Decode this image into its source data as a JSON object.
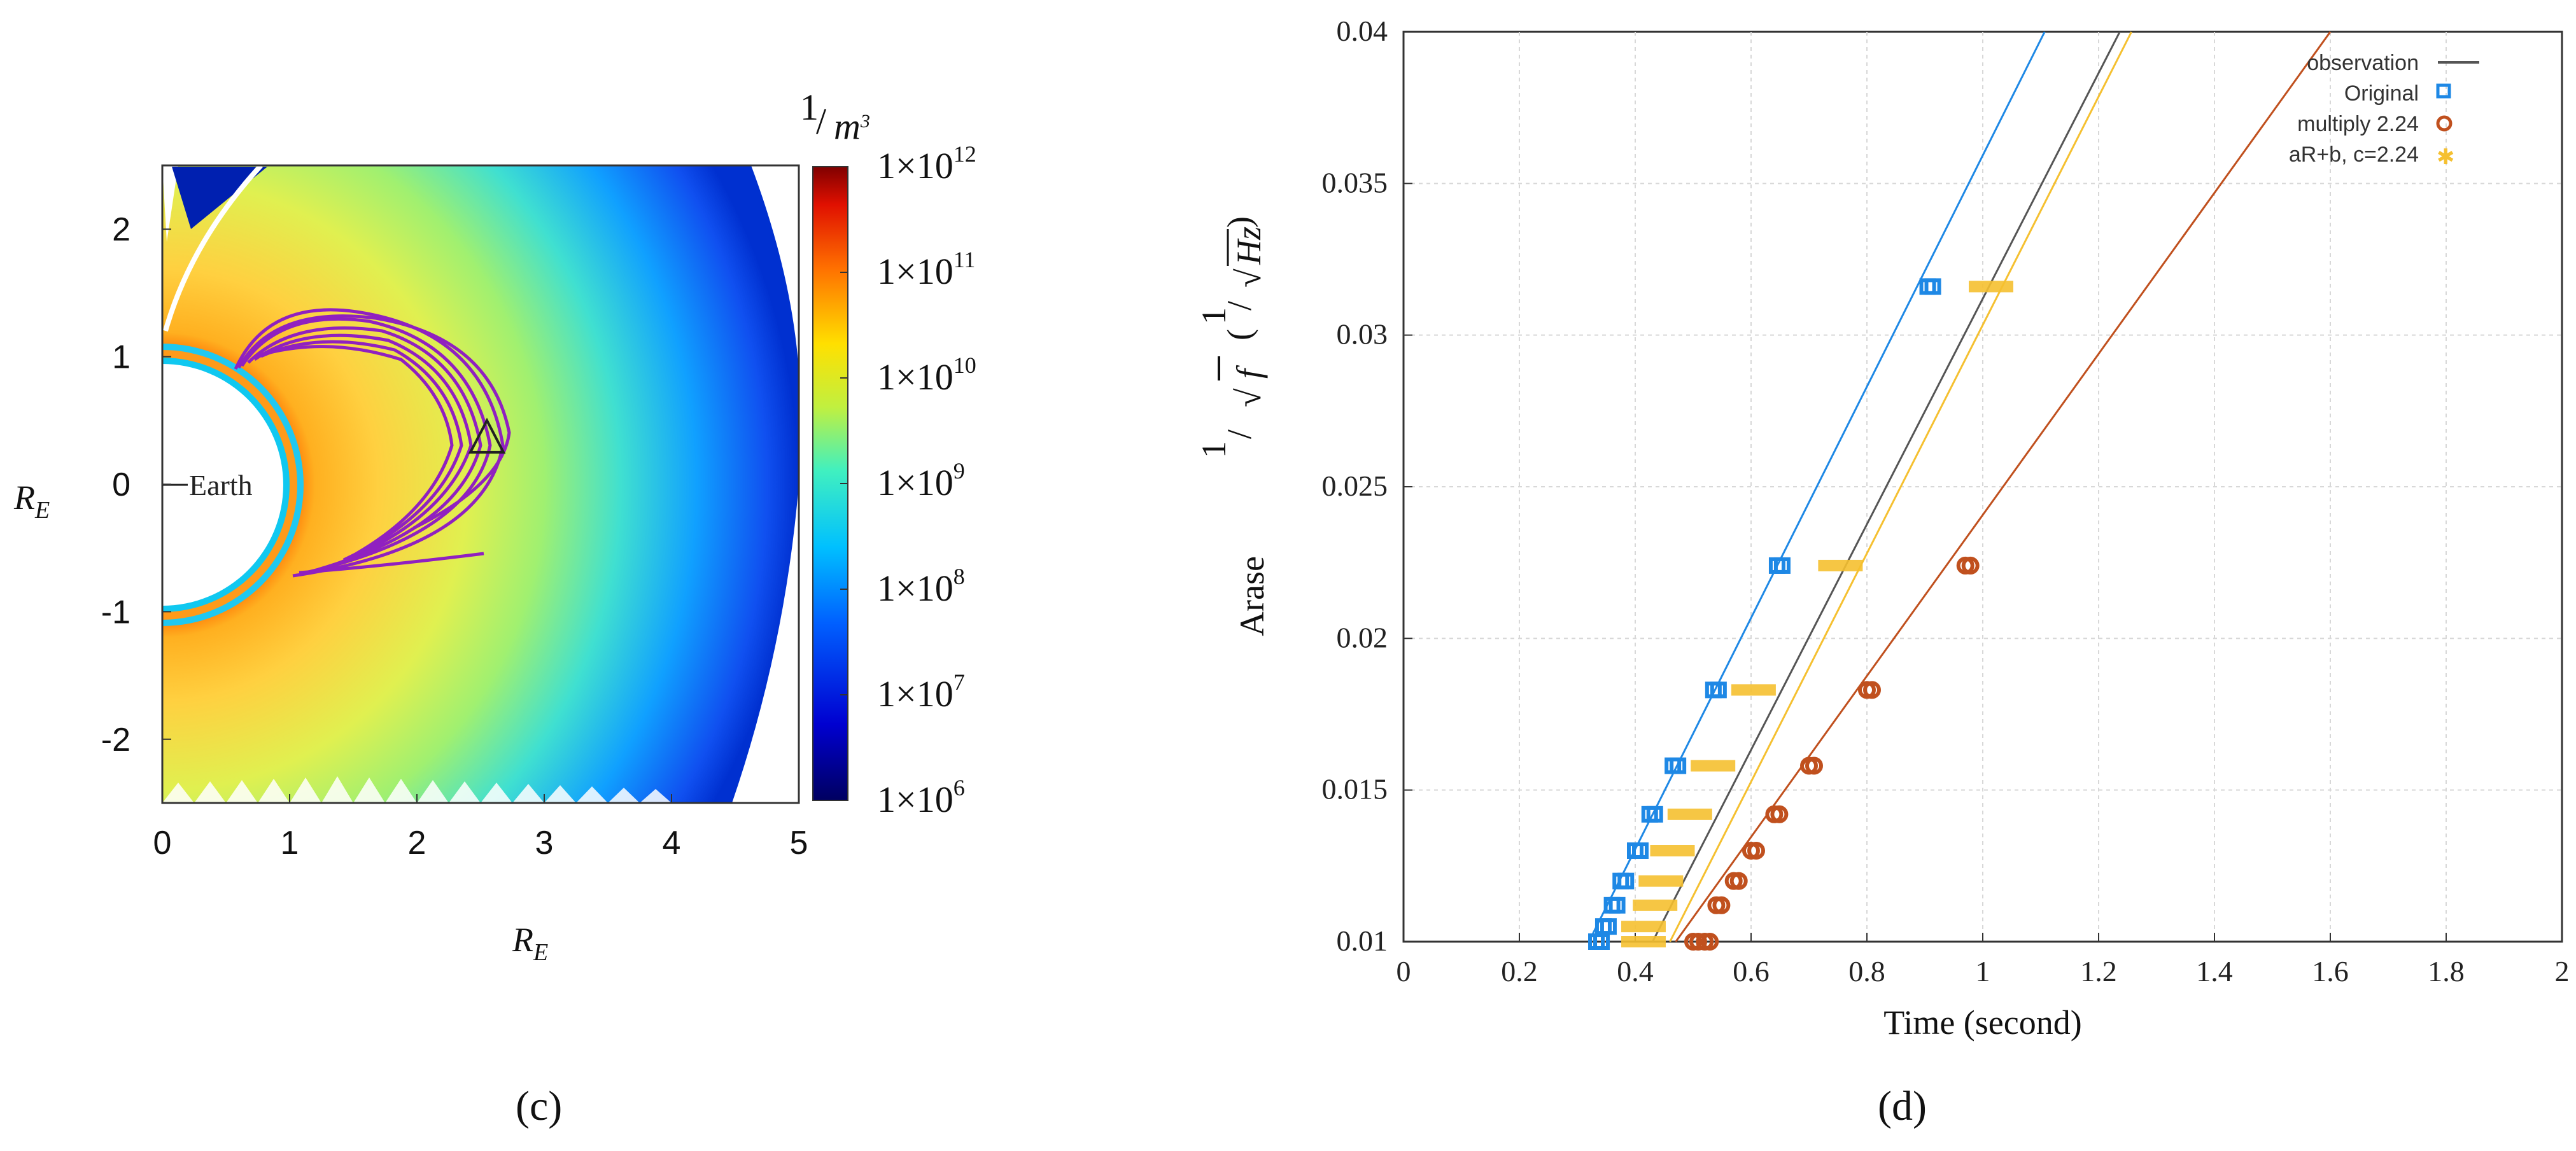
{
  "chart_data": [
    {
      "type": "heatmap",
      "panel_label": "(c)",
      "title": "",
      "xlabel": "R",
      "xlabel_sub": "E",
      "ylabel": "R",
      "ylabel_sub": "E",
      "xlim": [
        0,
        5
      ],
      "ylim": [
        -2.5,
        2.5
      ],
      "x_ticks": [
        "0",
        "1",
        "2",
        "3",
        "4",
        "5"
      ],
      "y_ticks": [
        "2",
        "1",
        "0",
        "-1",
        "-2"
      ],
      "earth_label": "Earth",
      "colorbar": {
        "unit_num": "1",
        "unit_den": "m",
        "unit_den_exp": "3",
        "scale": "log",
        "range": [
          1000000.0,
          1000000000000.0
        ],
        "ticks": [
          {
            "mantissa": "1×10",
            "exp": "12"
          },
          {
            "mantissa": "1×10",
            "exp": "11"
          },
          {
            "mantissa": "1×10",
            "exp": "10"
          },
          {
            "mantissa": "1×10",
            "exp": "9"
          },
          {
            "mantissa": "1×10",
            "exp": "8"
          },
          {
            "mantissa": "1×10",
            "exp": "7"
          },
          {
            "mantissa": "1×10",
            "exp": "6"
          }
        ]
      },
      "annotations": [
        "ray paths (purple)",
        "triangle marker"
      ],
      "marker_position_RE": [
        2.55,
        0.35
      ]
    },
    {
      "type": "line",
      "panel_label": "(d)",
      "title": "",
      "xlabel": "Time (second)",
      "ylabel_prefix": "Arase",
      "ylabel_num": "1",
      "ylabel_den": "f",
      "ylabel_unit_num": "1",
      "ylabel_unit_den": "Hz",
      "xlim": [
        0,
        2
      ],
      "ylim": [
        0.01,
        0.04
      ],
      "x_ticks": [
        "0",
        "0.2",
        "0.4",
        "0.6",
        "0.8",
        "1",
        "1.2",
        "1.4",
        "1.6",
        "1.8",
        "2"
      ],
      "y_ticks": [
        "0.04",
        "0.035",
        "0.03",
        "0.025",
        "0.02",
        "0.015",
        "0.01"
      ],
      "grid": true,
      "legend_position": "top-right",
      "series": [
        {
          "name": "observation",
          "kind": "line",
          "color": "#555555",
          "points": [
            [
              0.43,
              0.01
            ],
            [
              1.25,
              0.0405
            ]
          ]
        },
        {
          "name": "Original",
          "kind": "marker",
          "marker": "square",
          "color": "#1e88e5",
          "line": [
            [
              0.32,
              0.01
            ],
            [
              1.12,
              0.0405
            ]
          ],
          "points": [
            [
              0.333,
              0.01
            ],
            [
              0.345,
              0.0105
            ],
            [
              0.36,
              0.0112
            ],
            [
              0.375,
              0.012
            ],
            [
              0.4,
              0.013
            ],
            [
              0.425,
              0.0142
            ],
            [
              0.465,
              0.0158
            ],
            [
              0.535,
              0.0183
            ],
            [
              0.645,
              0.0224
            ],
            [
              0.905,
              0.0316
            ]
          ]
        },
        {
          "name": "multiply 2.24",
          "kind": "marker",
          "marker": "circle",
          "color": "#c0501e",
          "line": [
            [
              0.47,
              0.01
            ],
            [
              1.6,
              0.04
            ]
          ],
          "points": [
            [
              0.5,
              0.01
            ],
            [
              0.52,
              0.01
            ],
            [
              0.54,
              0.0112
            ],
            [
              0.57,
              0.012
            ],
            [
              0.6,
              0.013
            ],
            [
              0.64,
              0.0142
            ],
            [
              0.7,
              0.0158
            ],
            [
              0.8,
              0.0183
            ],
            [
              0.97,
              0.0224
            ]
          ]
        },
        {
          "name": "aR+b, c=2.24",
          "kind": "marker",
          "marker": "star",
          "color": "#f5c030",
          "line": [
            [
              0.46,
              0.01
            ],
            [
              1.27,
              0.0405
            ]
          ],
          "points": [
            [
              0.4,
              0.01
            ],
            [
              0.4,
              0.0105
            ],
            [
              0.42,
              0.0112
            ],
            [
              0.43,
              0.012
            ],
            [
              0.45,
              0.013
            ],
            [
              0.48,
              0.0142
            ],
            [
              0.52,
              0.0158
            ],
            [
              0.59,
              0.0183
            ],
            [
              0.74,
              0.0224
            ],
            [
              1.0,
              0.0316
            ]
          ]
        }
      ]
    }
  ]
}
